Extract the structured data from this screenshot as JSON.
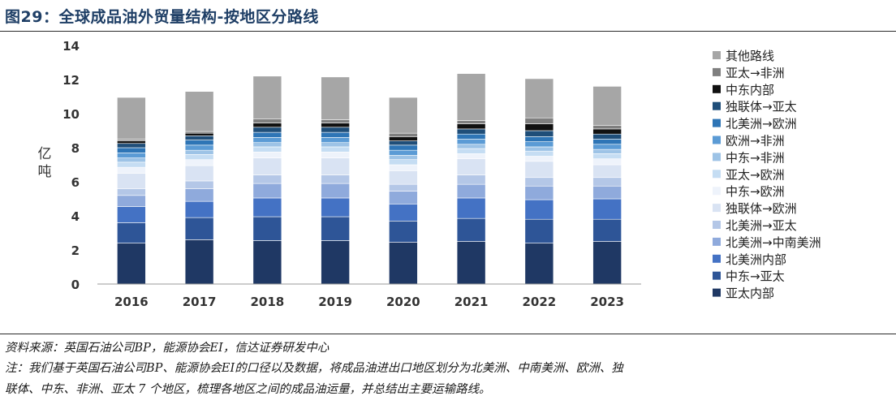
{
  "title": "图29：全球成品油外贸量结构-按地区分路线",
  "source": "资料来源：英国石油公司BP，能源协会EI，信达证券研发中心",
  "note_line1": "注：我们基于英国石油公司BP、能源协会EI的口径以及数据，将成品油进出口地区划分为北美洲、中南美洲、欧洲、独",
  "note_line2": "联体、中东、非洲、亚太 7 个地区，梳理各地区之间的成品油运量，并总结出主要运输路线。",
  "chart_data": {
    "type": "bar",
    "stacked": true,
    "ylabel": "亿吨",
    "ylim": [
      0,
      14
    ],
    "yticks": [
      "0",
      "2",
      "4",
      "6",
      "8",
      "10",
      "12",
      "14"
    ],
    "grid": false,
    "legend_position": "right",
    "categories": [
      "2016",
      "2017",
      "2018",
      "2019",
      "2020",
      "2021",
      "2022",
      "2023"
    ],
    "series": [
      {
        "name": "亚太内部",
        "color": "#1f3864",
        "values": [
          2.4,
          2.6,
          2.55,
          2.55,
          2.45,
          2.5,
          2.4,
          2.5
        ]
      },
      {
        "name": "中东→亚太",
        "color": "#2e5597",
        "values": [
          1.2,
          1.3,
          1.4,
          1.4,
          1.25,
          1.35,
          1.4,
          1.3
        ]
      },
      {
        "name": "北美洲内部",
        "color": "#4472c4",
        "values": [
          0.95,
          0.95,
          1.1,
          1.1,
          1.0,
          1.2,
          1.15,
          1.2
        ]
      },
      {
        "name": "北美洲→中南美洲",
        "color": "#8faadc",
        "values": [
          0.65,
          0.75,
          0.85,
          0.85,
          0.75,
          0.8,
          0.8,
          0.75
        ]
      },
      {
        "name": "北美洲→亚太",
        "color": "#b4c7e7",
        "values": [
          0.4,
          0.45,
          0.5,
          0.5,
          0.4,
          0.55,
          0.5,
          0.5
        ]
      },
      {
        "name": "独联体→欧洲",
        "color": "#d9e3f3",
        "values": [
          0.9,
          0.9,
          1.0,
          1.0,
          0.8,
          0.95,
          0.95,
          0.75
        ]
      },
      {
        "name": "中东→欧洲",
        "color": "#eef3fb",
        "values": [
          0.35,
          0.35,
          0.35,
          0.35,
          0.35,
          0.3,
          0.3,
          0.35
        ]
      },
      {
        "name": "亚太→欧洲",
        "color": "#c5ddf3",
        "values": [
          0.3,
          0.3,
          0.3,
          0.3,
          0.3,
          0.3,
          0.3,
          0.3
        ]
      },
      {
        "name": "中东→非洲",
        "color": "#9dc3e6",
        "values": [
          0.25,
          0.25,
          0.25,
          0.25,
          0.25,
          0.25,
          0.25,
          0.25
        ]
      },
      {
        "name": "欧洲→非洲",
        "color": "#5b9bd5",
        "values": [
          0.3,
          0.3,
          0.3,
          0.3,
          0.3,
          0.3,
          0.3,
          0.3
        ]
      },
      {
        "name": "北美洲→欧洲",
        "color": "#2e75b6",
        "values": [
          0.3,
          0.3,
          0.3,
          0.3,
          0.3,
          0.3,
          0.3,
          0.3
        ]
      },
      {
        "name": "独联体→亚太",
        "color": "#1f4e79",
        "values": [
          0.25,
          0.25,
          0.3,
          0.3,
          0.25,
          0.3,
          0.35,
          0.3
        ]
      },
      {
        "name": "中东内部",
        "color": "#111111",
        "values": [
          0.15,
          0.15,
          0.25,
          0.25,
          0.25,
          0.3,
          0.4,
          0.3
        ]
      },
      {
        "name": "亚太→非洲",
        "color": "#7f7f7f",
        "values": [
          0.1,
          0.1,
          0.25,
          0.2,
          0.2,
          0.2,
          0.35,
          0.2
        ]
      },
      {
        "name": "其他路线",
        "color": "#a6a6a6",
        "values": [
          2.45,
          2.35,
          2.5,
          2.5,
          2.1,
          2.75,
          2.3,
          2.3
        ]
      }
    ]
  }
}
